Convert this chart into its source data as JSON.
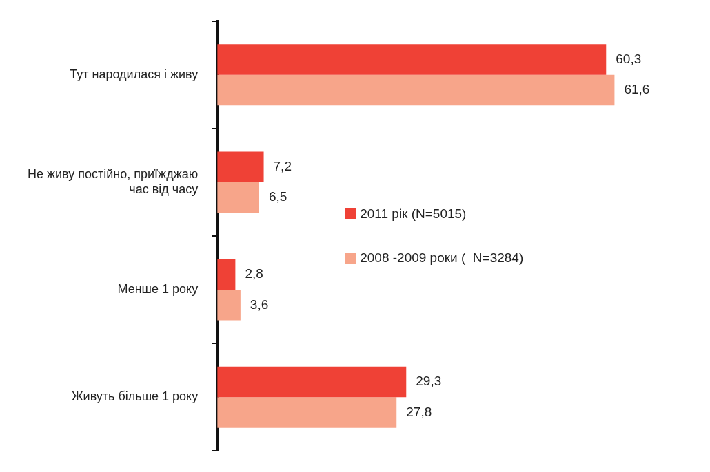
{
  "chart_data": {
    "type": "bar",
    "orientation": "horizontal",
    "categories": [
      "Тут народилася і живу",
      "Не живу постійно, приїжджаю час від часу",
      "Менше 1 року",
      "Живуть більше 1 року"
    ],
    "series": [
      {
        "name": "2011 рік (N=5015)",
        "color": "#ef4136",
        "values": [
          60.3,
          7.2,
          2.8,
          29.3
        ],
        "value_labels": [
          "60,3",
          "7,2",
          "2,8",
          "29,3"
        ]
      },
      {
        "name": "2008 -2009 роки (  N=3284)",
        "color": "#f7a58a",
        "values": [
          61.6,
          6.5,
          3.6,
          27.8
        ],
        "value_labels": [
          "61,6",
          "6,5",
          "3,6",
          "27,8"
        ]
      }
    ],
    "legend": "right"
  }
}
